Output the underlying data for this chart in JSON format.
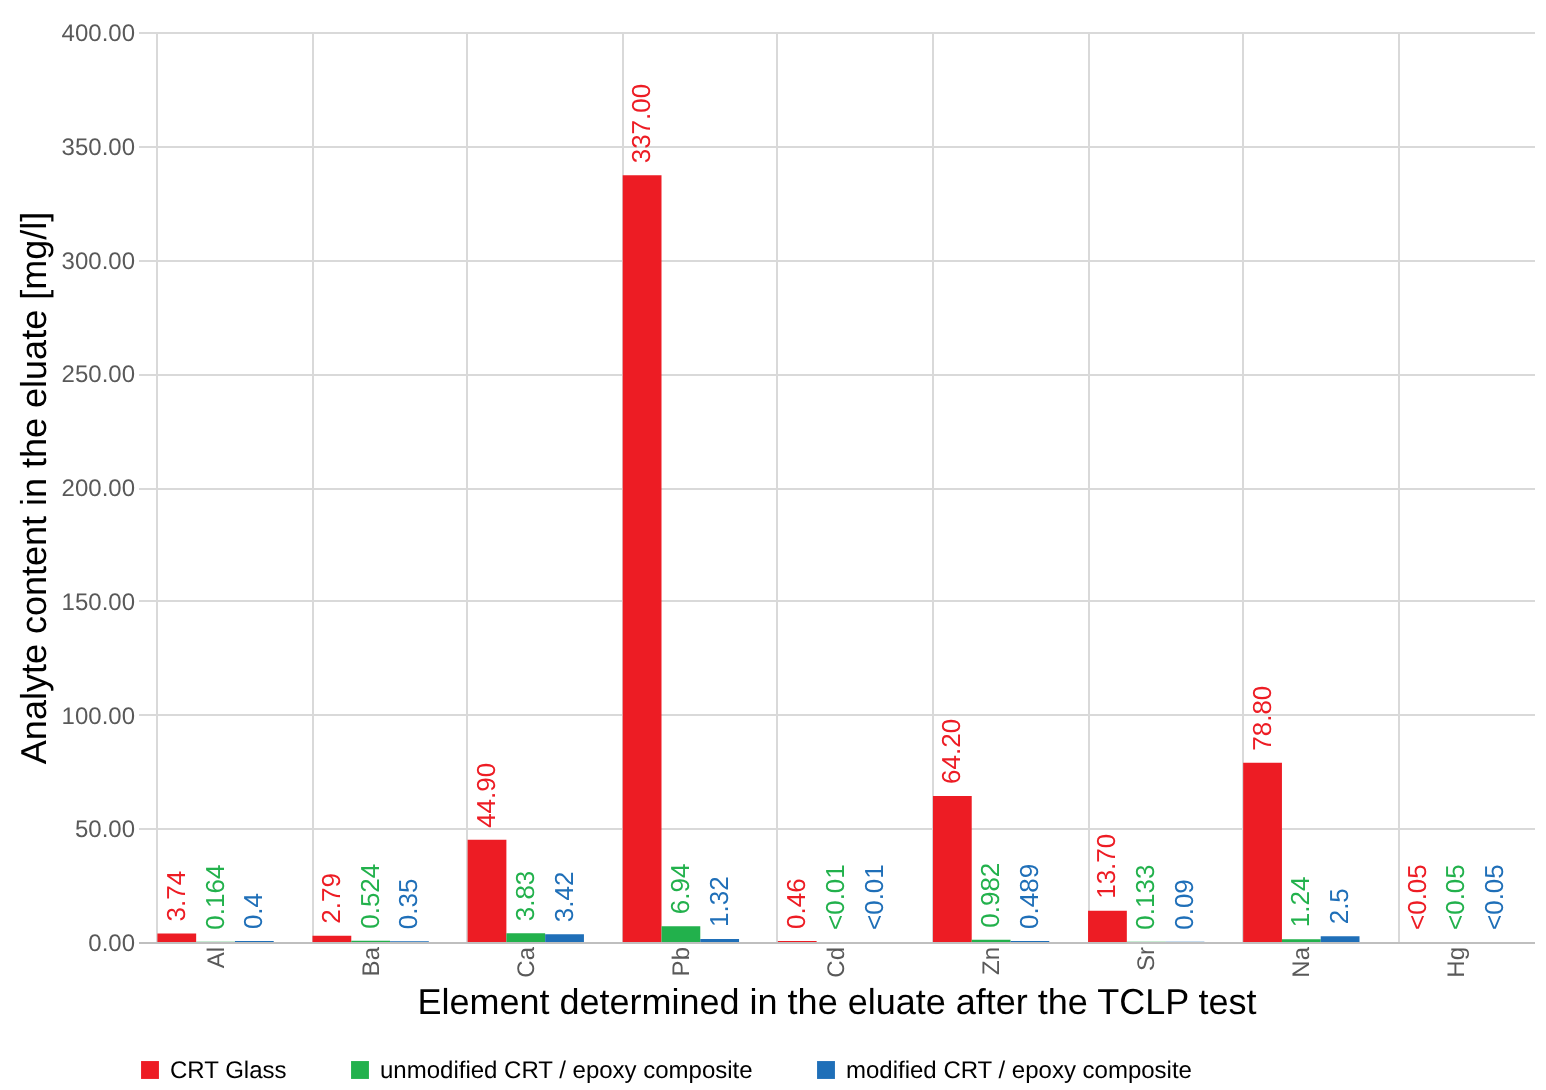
{
  "chart_data": {
    "type": "bar",
    "xlabel": "Element determined in the eluate after the TCLP test",
    "ylabel": "Analyte content in the eluate [mg/l]",
    "categories": [
      "Al",
      "Ba",
      "Ca",
      "Pb",
      "Cd",
      "Zn",
      "Sr",
      "Na",
      "Hg"
    ],
    "series": [
      {
        "name": "CRT Glass",
        "color": "#ed1c24",
        "values": [
          3.74,
          2.79,
          44.9,
          337.0,
          0.46,
          64.2,
          13.7,
          78.8,
          null
        ],
        "value_labels": [
          "3.74",
          "2.79",
          "44.90",
          "337.00",
          "0.46",
          "64.20",
          "13.70",
          "78.80",
          "<0.05"
        ]
      },
      {
        "name": "unmodified CRT / epoxy composite",
        "color": "#22b14c",
        "values": [
          0.164,
          0.524,
          3.83,
          6.94,
          null,
          0.982,
          0.133,
          1.24,
          null
        ],
        "value_labels": [
          "0.164",
          "0.524",
          "3.83",
          "6.94",
          "<0.01",
          "0.982",
          "0.133",
          "1.24",
          "<0.05"
        ]
      },
      {
        "name": "modified CRT / epoxy composite",
        "color": "#1f6fb8",
        "values": [
          0.4,
          0.35,
          3.42,
          1.32,
          null,
          0.489,
          0.09,
          2.5,
          null
        ],
        "value_labels": [
          "0.4",
          "0.35",
          "3.42",
          "1.32",
          "<0.01",
          "0.489",
          "0.09",
          "2.5",
          "<0.05"
        ]
      }
    ],
    "ylim": [
      0,
      400
    ],
    "yticks": [
      {
        "value": 0,
        "label": "0.00"
      },
      {
        "value": 50,
        "label": "50.00"
      },
      {
        "value": 100,
        "label": "100.00"
      },
      {
        "value": 150,
        "label": "150.00"
      },
      {
        "value": 200,
        "label": "200.00"
      },
      {
        "value": 250,
        "label": "250.00"
      },
      {
        "value": 300,
        "label": "300.00"
      },
      {
        "value": 350,
        "label": "350.00"
      },
      {
        "value": 400,
        "label": "400.00"
      }
    ],
    "grid": true,
    "legend": "bottom"
  }
}
